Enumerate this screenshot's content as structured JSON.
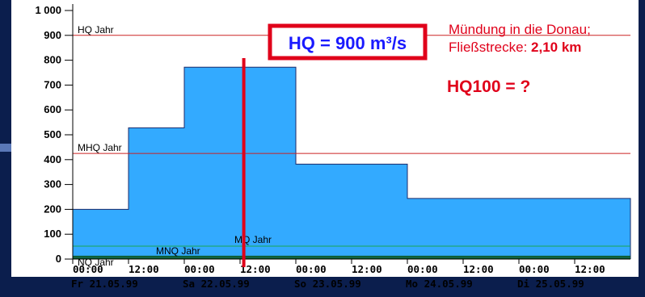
{
  "colors": {
    "background": "#0b1e4d",
    "panel": "#ffffff",
    "fill": "#33aaff",
    "fill_stroke": "#1c2a6a",
    "ref_red": "#cc2222",
    "ref_green": "#1aa850",
    "highlight_red": "#e0001a",
    "highlight_blue": "#1a1aff"
  },
  "annotations": {
    "info_line1": "Mündung in die Donau;",
    "info_line2_prefix": "Fließstrecke: ",
    "info_line2_value": "2,10 km",
    "hq100": "HQ100 = ?",
    "hq_box": "HQ = 900 m³/s"
  },
  "chart_data": {
    "type": "area",
    "step": true,
    "ylim": [
      0,
      1000
    ],
    "yticks": [
      0,
      100,
      200,
      300,
      400,
      500,
      600,
      700,
      800,
      900,
      1000
    ],
    "ytick_labels": [
      "0",
      "100",
      "200",
      "300",
      "400",
      "500",
      "600",
      "700",
      "800",
      "900",
      "1 000"
    ],
    "xlim_hours": [
      0,
      120
    ],
    "xticks": [
      {
        "h": 0,
        "label": "00:00"
      },
      {
        "h": 12,
        "label": "12:00"
      },
      {
        "h": 24,
        "label": "00:00"
      },
      {
        "h": 36,
        "label": "12:00"
      },
      {
        "h": 48,
        "label": "00:00"
      },
      {
        "h": 60,
        "label": "12:00"
      },
      {
        "h": 72,
        "label": "00:00"
      },
      {
        "h": 84,
        "label": "12:00"
      },
      {
        "h": 96,
        "label": "00:00"
      },
      {
        "h": 108,
        "label": "12:00"
      }
    ],
    "day_labels": [
      {
        "h": 0,
        "label": "Fr 21.05.99"
      },
      {
        "h": 24,
        "label": "Sa 22.05.99"
      },
      {
        "h": 48,
        "label": "So 23.05.99"
      },
      {
        "h": 72,
        "label": "Mo 24.05.99"
      },
      {
        "h": 96,
        "label": "Di 25.05.99"
      }
    ],
    "series": [
      {
        "steps": [
          {
            "from_h": 0,
            "to_h": 12,
            "value": 200
          },
          {
            "from_h": 12,
            "to_h": 24,
            "value": 528
          },
          {
            "from_h": 24,
            "to_h": 36,
            "value": 772
          },
          {
            "from_h": 36,
            "to_h": 48,
            "value": 772
          },
          {
            "from_h": 48,
            "to_h": 72,
            "value": 382
          },
          {
            "from_h": 72,
            "to_h": 120,
            "value": 244
          }
        ]
      }
    ],
    "reference_lines": [
      {
        "label": "HQ Jahr",
        "value": 900,
        "color": "red"
      },
      {
        "label": "MHQ Jahr",
        "value": 425,
        "color": "red"
      },
      {
        "label": "MQ Jahr",
        "value": 52,
        "color": "green"
      },
      {
        "label": "MNQ Jahr",
        "value": 10,
        "color": "darkgreen"
      },
      {
        "label": "NQ Jahr",
        "value": 3,
        "color": "darkgreen"
      }
    ],
    "marker_line_h": 36.8
  }
}
